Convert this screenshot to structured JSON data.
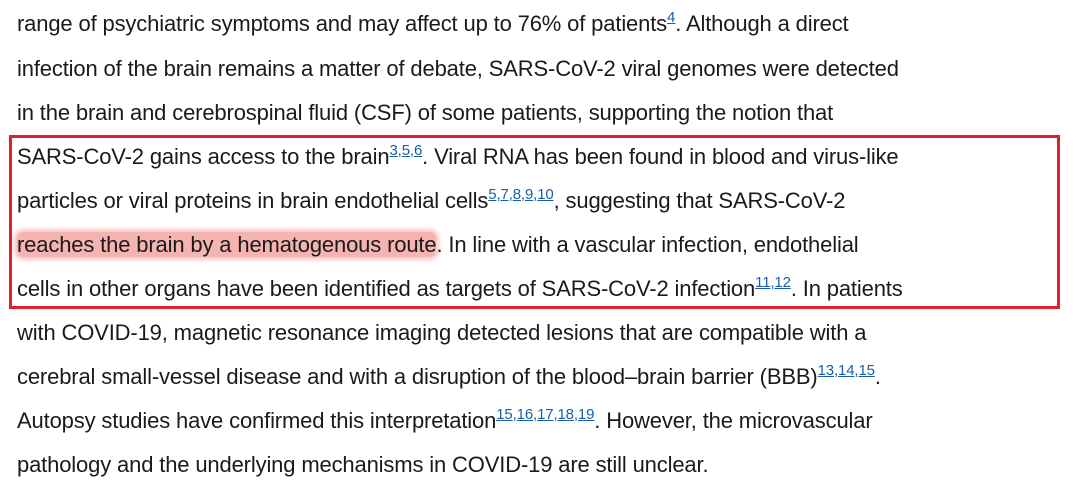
{
  "lines": [
    [
      {
        "t": "range of psychiatric symptoms and may affect up to 76% of patients"
      },
      {
        "refs": [
          "4"
        ]
      },
      {
        "t": ". Although a direct"
      }
    ],
    [
      {
        "t": "infection of the brain remains a matter of debate, SARS-CoV-2 viral genomes were detected"
      }
    ],
    [
      {
        "t": "in the brain and cerebrospinal fluid (CSF) of some patients, supporting the notion that"
      }
    ],
    [
      {
        "t": "SARS-CoV-2 gains access to the brain"
      },
      {
        "refs": [
          "3",
          "5",
          "6"
        ]
      },
      {
        "t": ". Viral RNA has been found in blood and virus-like"
      }
    ],
    [
      {
        "t": "particles or viral proteins in brain endothelial cells"
      },
      {
        "refs": [
          "5",
          "7",
          "8",
          "9",
          "10"
        ]
      },
      {
        "t": ", suggesting that SARS-CoV-2"
      }
    ],
    [
      {
        "t": "reaches the brain by a hematogenous route",
        "hl": true
      },
      {
        "t": ". In line with a vascular infection, endothelial"
      }
    ],
    [
      {
        "t": "cells in other organs have been identified as targets of SARS-CoV-2 infection"
      },
      {
        "refs": [
          "11",
          "12"
        ]
      },
      {
        "t": ". In patients"
      }
    ],
    [
      {
        "t": "with COVID-19, magnetic resonance imaging detected lesions that are compatible with a"
      }
    ],
    [
      {
        "t": "cerebral small-vessel disease and with a disruption of the blood–brain barrier (BBB)"
      },
      {
        "refs": [
          "13",
          "14",
          "15"
        ]
      },
      {
        "t": "."
      }
    ],
    [
      {
        "t": "Autopsy studies have confirmed this interpretation"
      },
      {
        "refs": [
          "15",
          "16",
          "17",
          "18",
          "19"
        ]
      },
      {
        "t": ". However, the microvascular"
      }
    ],
    [
      {
        "t": "pathology and the underlying mechanisms in COVID-19 are still unclear."
      }
    ]
  ],
  "colors": {
    "text": "#1a1a1a",
    "link": "#1a5ea8",
    "highlight": "#f5b4b1",
    "box_border": "#e0202a"
  }
}
